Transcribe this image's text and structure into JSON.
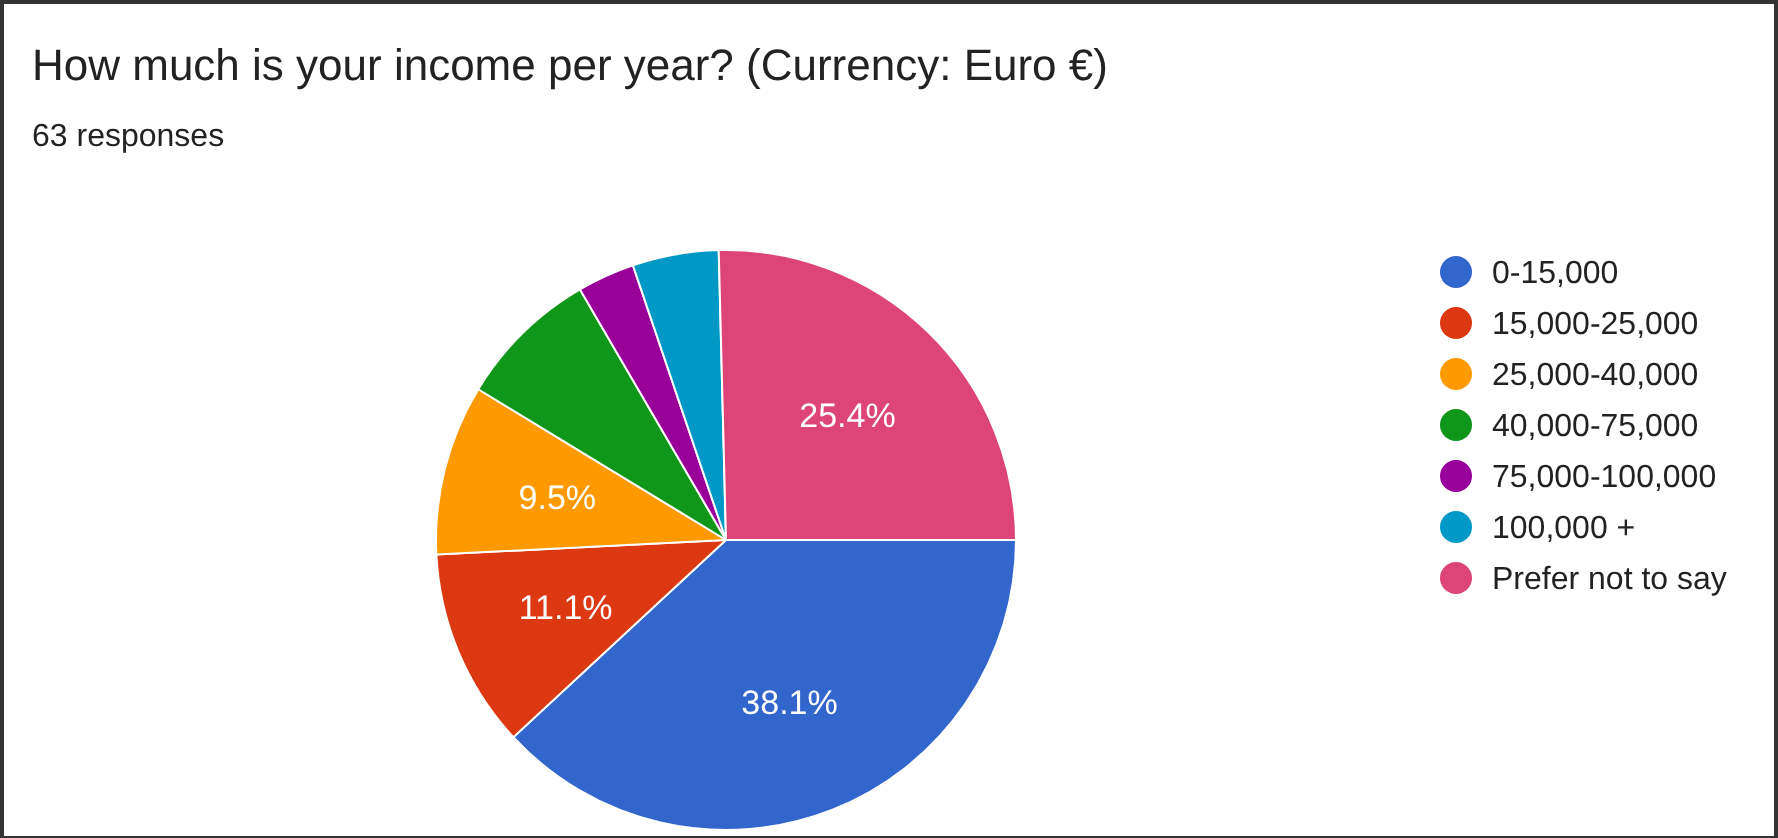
{
  "chart_data": {
    "type": "pie",
    "title": "How much is your income per year? (Currency: Euro €)",
    "subtitle": "63 responses",
    "categories": [
      "0-15,000",
      "15,000-25,000",
      "25,000-40,000",
      "40,000-75,000",
      "75,000-100,000",
      "100,000 +",
      "Prefer not to say"
    ],
    "values": [
      38.1,
      11.1,
      9.5,
      7.9,
      3.2,
      4.8,
      25.4
    ],
    "colors": [
      "#3366cc",
      "#dc3912",
      "#ff9900",
      "#109618",
      "#990099",
      "#0099c6",
      "#dd4477"
    ],
    "value_labels": [
      "38.1%",
      "11.1%",
      "9.5%",
      null,
      null,
      null,
      "25.4%"
    ],
    "legend": "right"
  }
}
